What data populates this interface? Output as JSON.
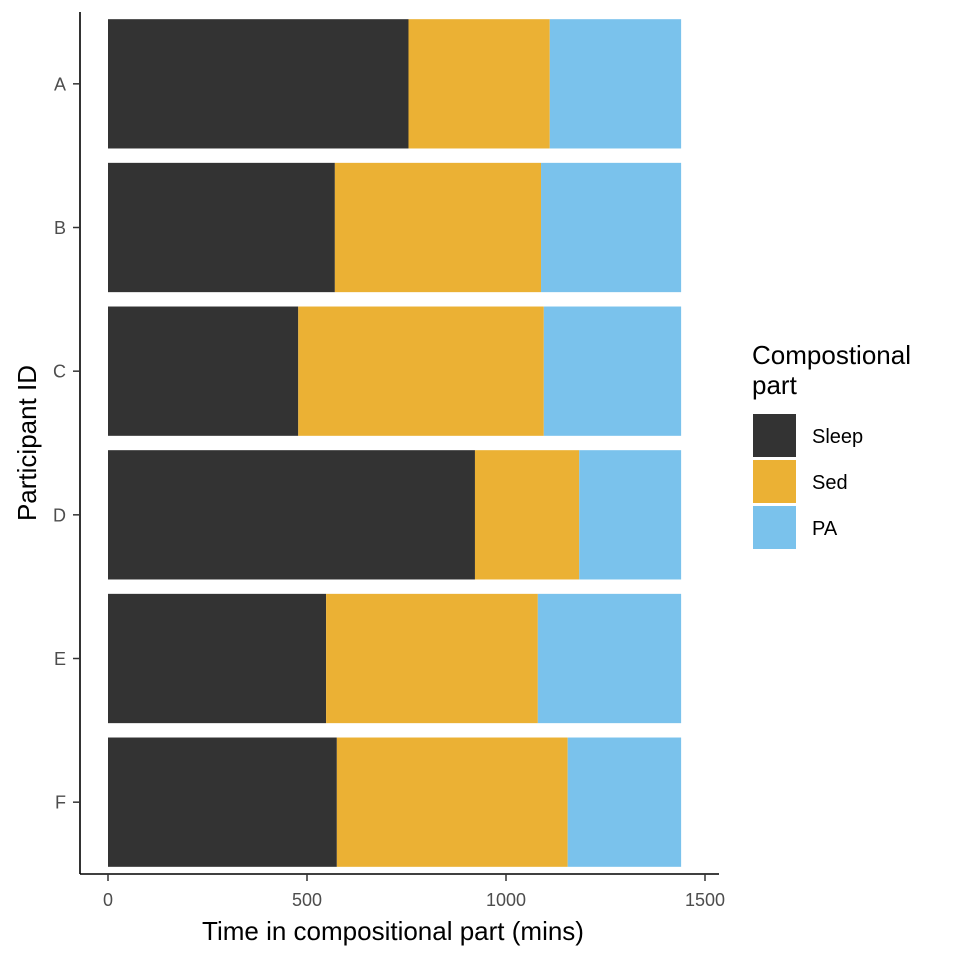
{
  "chart_data": {
    "type": "bar",
    "orientation": "horizontal",
    "stacked": true,
    "xlabel": "Time in compositional part (mins)",
    "ylabel": "Participant ID",
    "xlim": [
      0,
      1500
    ],
    "x_ticks": [
      0,
      500,
      1000,
      1500
    ],
    "categories": [
      "A",
      "B",
      "C",
      "D",
      "E",
      "F"
    ],
    "legend_title_lines": [
      "Compostional",
      "part"
    ],
    "legend_position": "right",
    "grid": false,
    "series": [
      {
        "name": "Sleep",
        "color": "#333333",
        "values": [
          755,
          570,
          478,
          922,
          548,
          575
        ]
      },
      {
        "name": "Sed",
        "color": "#EBB134",
        "values": [
          355,
          518,
          617,
          262,
          532,
          580
        ]
      },
      {
        "name": "PA",
        "color": "#7AC2EC",
        "values": [
          330,
          352,
          345,
          256,
          360,
          285
        ]
      }
    ]
  }
}
